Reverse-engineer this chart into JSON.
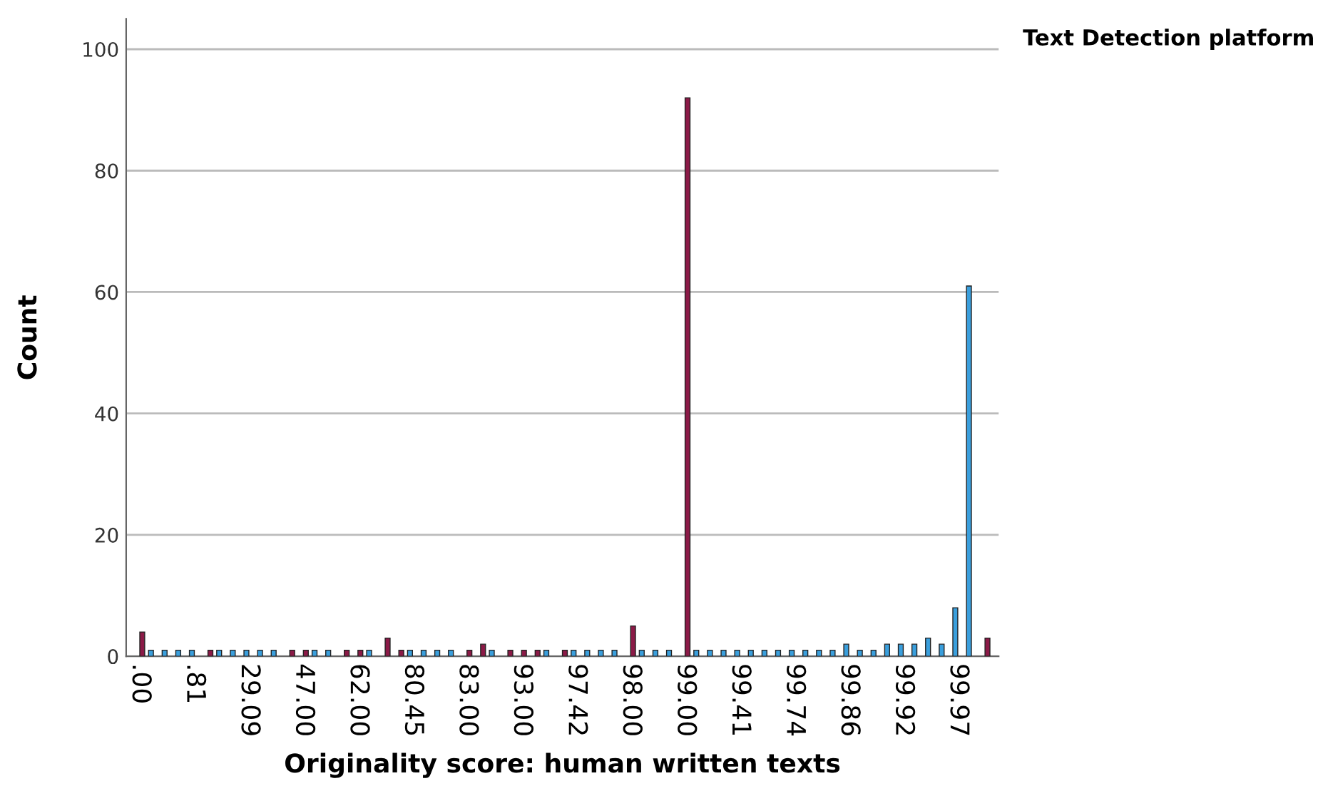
{
  "chart_data": {
    "type": "bar",
    "xlabel": "Originality score: human written texts",
    "ylabel": "Count",
    "legend_title": "Text Detection platform",
    "categories": [
      ".00",
      null,
      null,
      null,
      ".81",
      null,
      null,
      null,
      "29.09",
      null,
      null,
      null,
      "47.00",
      null,
      null,
      null,
      "62.00",
      null,
      null,
      null,
      "80.45",
      null,
      null,
      null,
      "83.00",
      null,
      null,
      null,
      "93.00",
      null,
      null,
      null,
      "97.42",
      null,
      null,
      null,
      "98.00",
      null,
      null,
      null,
      "99.00",
      null,
      null,
      null,
      "99.41",
      null,
      null,
      null,
      "99.74",
      null,
      null,
      null,
      "99.86",
      null,
      null,
      null,
      "99.92",
      null,
      null,
      null,
      "99.97",
      null,
      null
    ],
    "series": [
      {
        "color": "#3a9fdd",
        "values": [
          null,
          1,
          1,
          1,
          1,
          null,
          1,
          1,
          1,
          1,
          1,
          null,
          null,
          1,
          1,
          null,
          null,
          1,
          null,
          null,
          1,
          1,
          1,
          1,
          null,
          null,
          1,
          null,
          null,
          null,
          1,
          null,
          1,
          1,
          1,
          1,
          null,
          1,
          1,
          1,
          null,
          1,
          1,
          1,
          1,
          1,
          1,
          1,
          1,
          1,
          1,
          1,
          2,
          1,
          1,
          2,
          2,
          2,
          3,
          2,
          8,
          61,
          null
        ]
      },
      {
        "color": "#8b1a47",
        "values": [
          4,
          null,
          null,
          null,
          null,
          1,
          null,
          null,
          null,
          null,
          null,
          1,
          1,
          null,
          null,
          1,
          1,
          null,
          3,
          1,
          null,
          null,
          null,
          null,
          1,
          2,
          null,
          1,
          1,
          1,
          null,
          1,
          null,
          null,
          null,
          null,
          5,
          null,
          null,
          null,
          92,
          null,
          null,
          null,
          null,
          null,
          null,
          null,
          null,
          null,
          null,
          null,
          null,
          null,
          null,
          null,
          null,
          null,
          null,
          null,
          null,
          null,
          3
        ]
      }
    ],
    "ylim": [
      0,
      105
    ],
    "yticks": [
      0,
      20,
      40,
      60,
      80,
      100
    ],
    "grid": "y"
  }
}
